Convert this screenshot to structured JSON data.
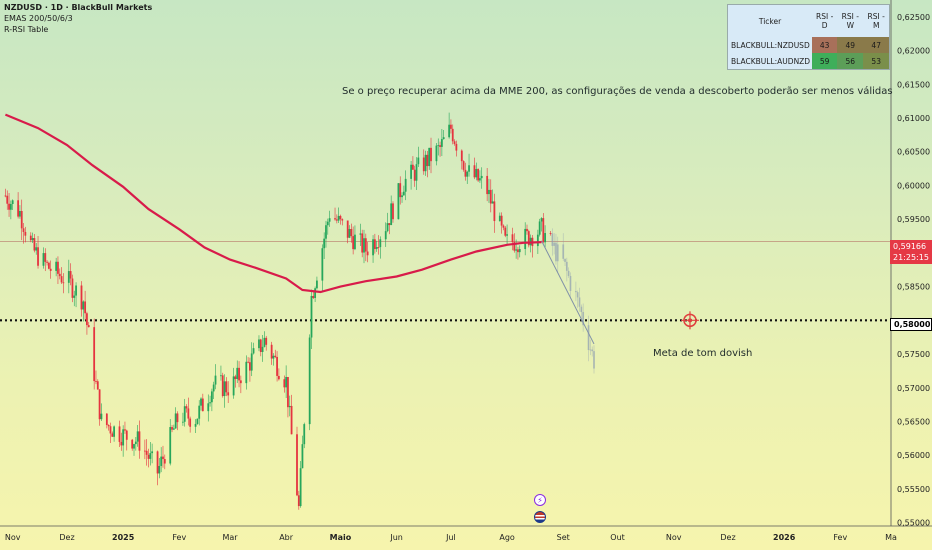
{
  "header": {
    "title": "NZDUSD · 1D · BlackBull Markets",
    "indicator1": "EMAS 200/50/6/3",
    "indicator2": "R-RSI Table"
  },
  "rsi_table": {
    "headers": [
      "Ticker",
      "RSI - D",
      "RSI - W",
      "RSI - M"
    ],
    "rows": [
      {
        "ticker": "BLACKBULL:NZDUSD",
        "d": "43",
        "w": "49",
        "m": "47",
        "colors": [
          "#a8705a",
          "#8a7a4a",
          "#8a7a4a"
        ]
      },
      {
        "ticker": "BLACKBULL:AUDNZD",
        "d": "59",
        "w": "56",
        "m": "53",
        "colors": [
          "#3fae5a",
          "#5c9e58",
          "#7a8f4a"
        ]
      }
    ]
  },
  "annotations": {
    "top_note": "Se o preço recuperar acima da MME 200, as configurações de venda a descoberto poderão ser menos válidas",
    "target_note": "Meta de tom dovish"
  },
  "price_tags": {
    "last_price": "0,59166",
    "countdown": "21:25:15",
    "target_level": "0,58000"
  },
  "icons": {
    "event1": "lightning-icon",
    "event2": "us-flag-icon"
  },
  "colors": {
    "up_candle": "#26a65b",
    "down_candle": "#e5333f",
    "ema200": "#d81b4a",
    "last_price": "#e53945",
    "target_line": "#111111",
    "target_marker": "#e0403f"
  },
  "chart_data": {
    "type": "line",
    "title": "NZDUSD · 1D · BlackBull Markets",
    "xlabel": "",
    "ylabel": "",
    "x_tick_labels": [
      "Nov",
      "Dez",
      "2025",
      "Fev",
      "Mar",
      "Abr",
      "Maio",
      "Jun",
      "Jul",
      "Ago",
      "Set",
      "Out",
      "Nov",
      "Dez",
      "2026",
      "Fev",
      "Ma"
    ],
    "y_tick_labels": [
      "0,62500",
      "0,62000",
      "0,61500",
      "0,61000",
      "0,60500",
      "0,60000",
      "0,59500",
      "0,58500",
      "0,57500",
      "0,57000",
      "0,56500",
      "0,56000",
      "0,55500",
      "0,55000"
    ],
    "ylim": [
      0.5495,
      0.6275
    ],
    "series": [
      {
        "name": "EMA 200",
        "x": [
          "2024-10-28",
          "2024-11-15",
          "2024-12-01",
          "2024-12-15",
          "2025-01-01",
          "2025-01-15",
          "2025-02-01",
          "2025-02-15",
          "2025-03-01",
          "2025-03-15",
          "2025-04-01",
          "2025-04-10",
          "2025-04-20",
          "2025-05-01",
          "2025-05-15",
          "2025-06-01",
          "2025-06-15",
          "2025-07-01",
          "2025-07-15",
          "2025-08-01",
          "2025-08-10",
          "2025-08-20"
        ],
        "values": [
          0.6105,
          0.6085,
          0.606,
          0.603,
          0.5998,
          0.5965,
          0.5935,
          0.5908,
          0.589,
          0.5878,
          0.5862,
          0.5845,
          0.5842,
          0.585,
          0.5858,
          0.5865,
          0.5875,
          0.589,
          0.5902,
          0.5912,
          0.5915,
          0.5916
        ]
      },
      {
        "name": "NZDUSD",
        "x": [
          "2024-10-28",
          "2024-11-05",
          "2024-11-12",
          "2024-11-20",
          "2024-12-01",
          "2024-12-10",
          "2024-12-20",
          "2025-01-01",
          "2025-01-10",
          "2025-01-20",
          "2025-02-01",
          "2025-02-10",
          "2025-02-20",
          "2025-03-01",
          "2025-03-10",
          "2025-03-20",
          "2025-04-01",
          "2025-04-08",
          "2025-04-15",
          "2025-04-25",
          "2025-05-05",
          "2025-05-15",
          "2025-05-25",
          "2025-06-05",
          "2025-06-15",
          "2025-06-25",
          "2025-07-01",
          "2025-07-10",
          "2025-07-20",
          "2025-07-31",
          "2025-08-10",
          "2025-08-20",
          "2025-09-01",
          "2025-09-10",
          "2025-09-18"
        ],
        "values": [
          0.5985,
          0.596,
          0.5905,
          0.588,
          0.586,
          0.583,
          0.565,
          0.563,
          0.562,
          0.5575,
          0.566,
          0.5655,
          0.5705,
          0.57,
          0.573,
          0.577,
          0.571,
          0.552,
          0.5835,
          0.596,
          0.593,
          0.5905,
          0.5935,
          0.6005,
          0.603,
          0.6055,
          0.6085,
          0.602,
          0.6,
          0.5915,
          0.592,
          0.5935,
          0.5885,
          0.582,
          0.574
        ]
      },
      {
        "name": "Meta",
        "x": [
          "2025-11-10"
        ],
        "values": [
          0.58
        ]
      }
    ],
    "grid": false,
    "legend": "none"
  }
}
